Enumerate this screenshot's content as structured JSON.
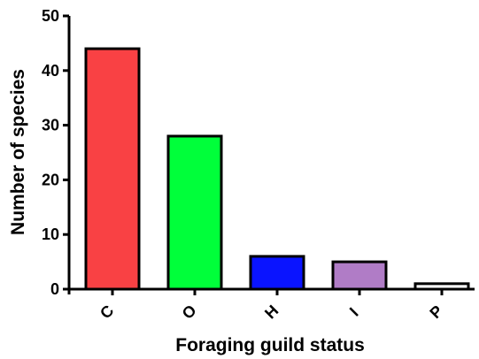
{
  "chart_data": {
    "type": "bar",
    "categories": [
      "C",
      "O",
      "H",
      "I",
      "P"
    ],
    "values": [
      44,
      28,
      6,
      5,
      1
    ],
    "colors": [
      "#f94144",
      "#00ff3a",
      "#0a14ff",
      "#b07cc6",
      "#ffffff"
    ],
    "xlabel": "Foraging guild status",
    "ylabel": "Number of species",
    "ylim": [
      0,
      50
    ],
    "yticks": [
      0,
      10,
      20,
      30,
      40,
      50
    ],
    "grid": false,
    "legend": "none"
  }
}
